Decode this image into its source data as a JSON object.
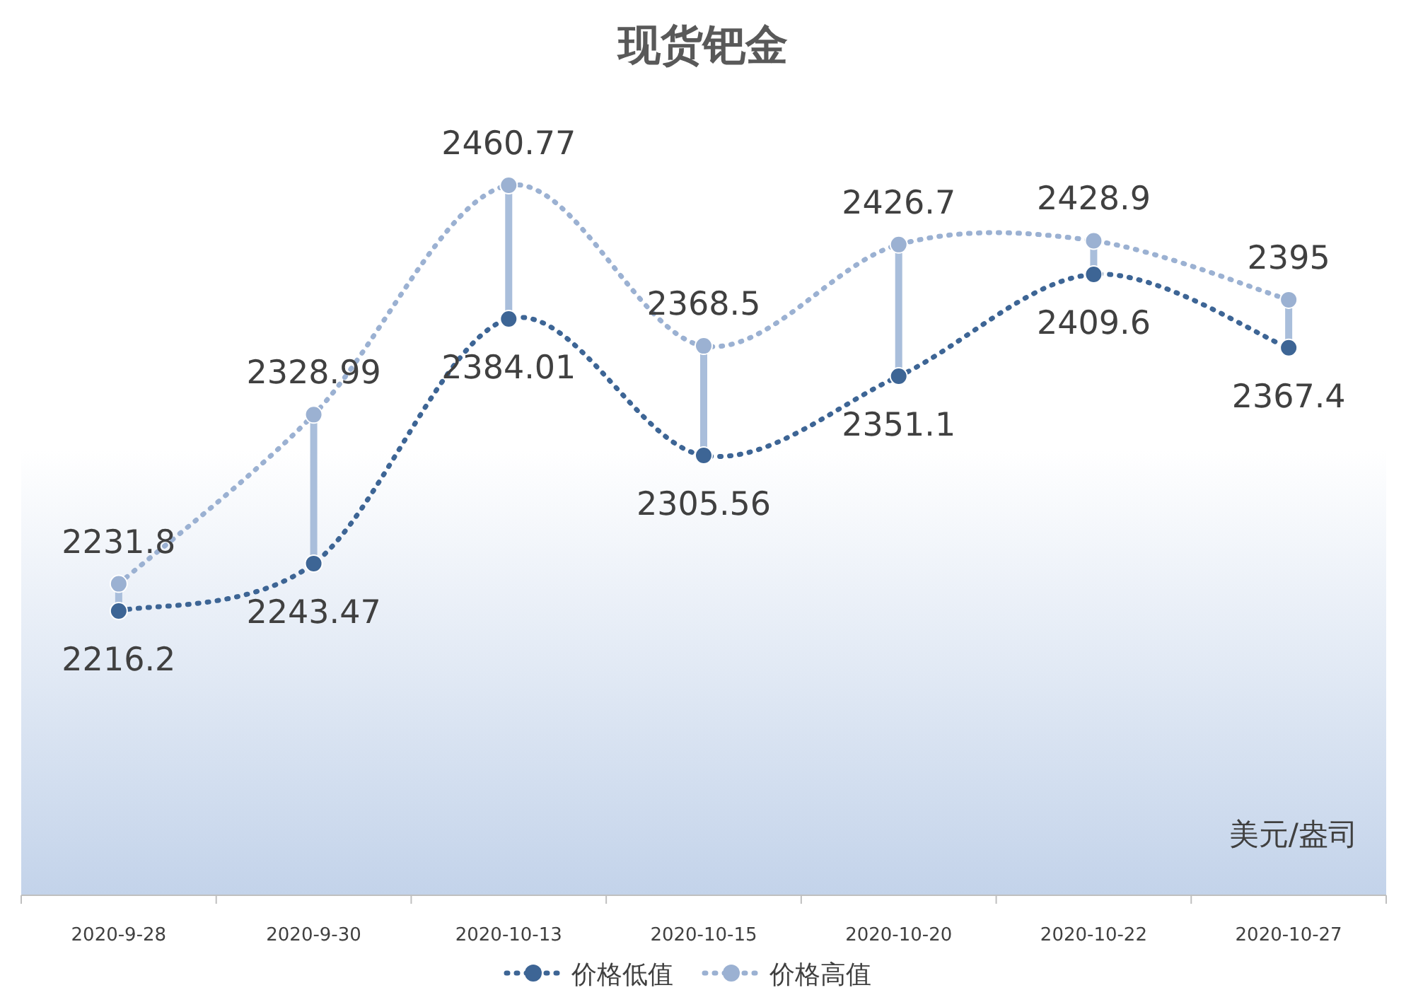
{
  "chart_data": {
    "type": "line",
    "title": "现货钯金",
    "categories": [
      "2020-9-28",
      "2020-9-30",
      "2020-10-13",
      "2020-10-15",
      "2020-10-20",
      "2020-10-22",
      "2020-10-27"
    ],
    "series": [
      {
        "name": "价格低值",
        "color": "#3d6595",
        "values": [
          2216.2,
          2243.47,
          2384.01,
          2305.56,
          2351.1,
          2409.6,
          2367.4
        ]
      },
      {
        "name": "价格高值",
        "color": "#9bb1d2",
        "values": [
          2231.8,
          2328.99,
          2460.77,
          2368.5,
          2426.7,
          2428.9,
          2395
        ]
      }
    ],
    "data_labels": true,
    "marker": "circle",
    "line_style": "dotted",
    "legend": "bottom",
    "annotations": [
      "美元/盎司"
    ]
  }
}
